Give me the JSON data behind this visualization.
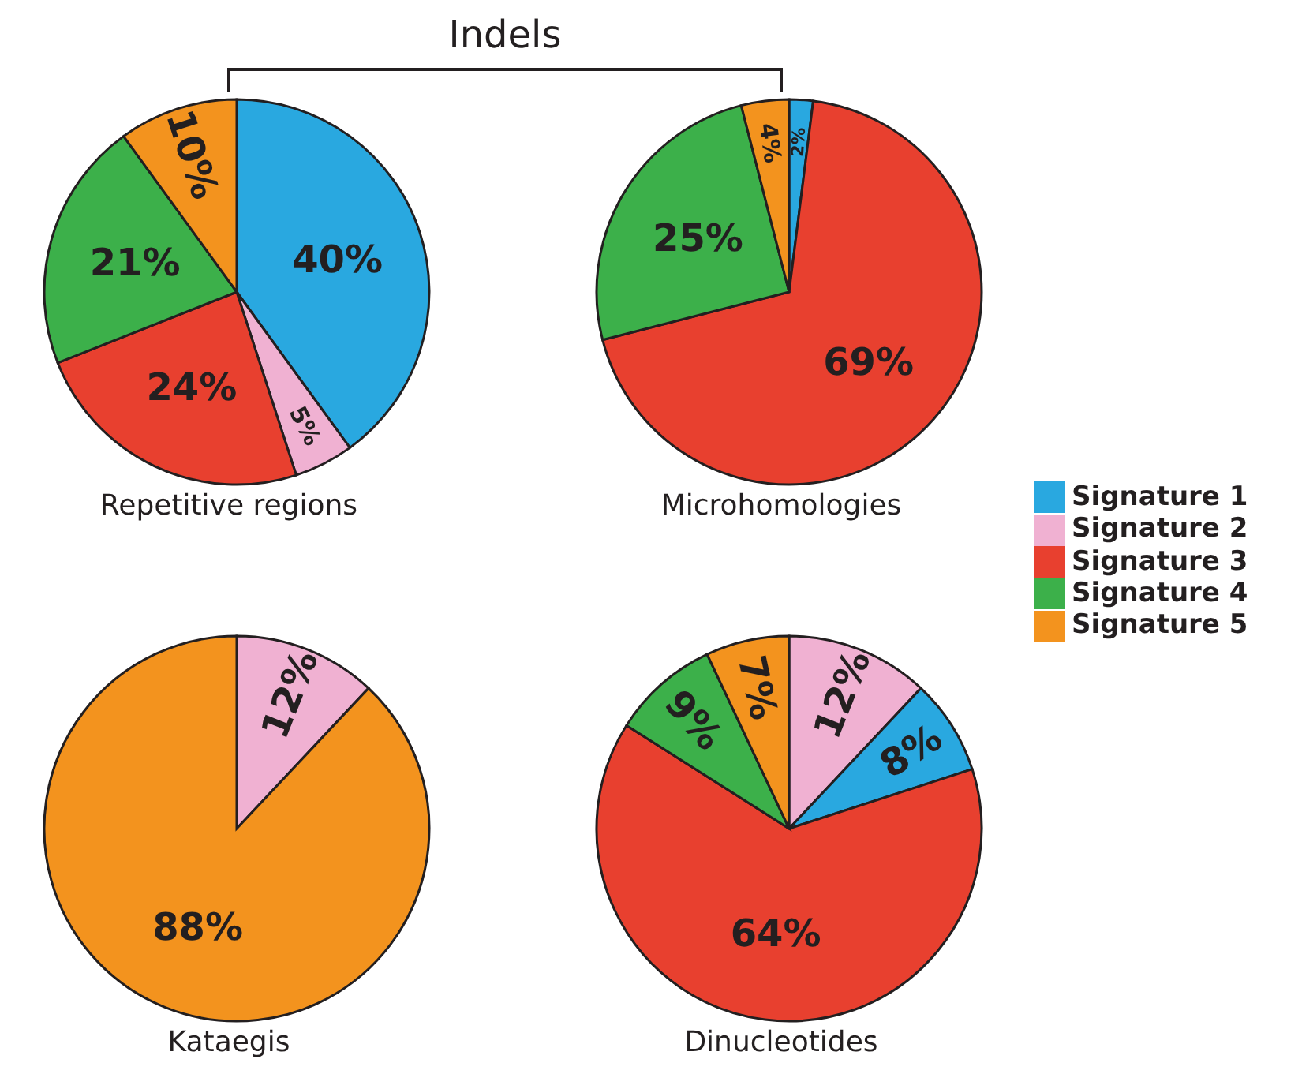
{
  "chart_data": [
    {
      "type": "pie",
      "title": "Repetitive regions",
      "annotations": [
        "Indels"
      ],
      "categories": [
        null,
        null,
        null,
        null,
        null
      ],
      "values": [
        40,
        5,
        24,
        21,
        10
      ],
      "colors": [
        "#29a8e0",
        "#f0b1d2",
        "#e8402f",
        "#3cb04a",
        "#f3931e"
      ],
      "value_labels": [
        "40%",
        "5%",
        "24%",
        "21%",
        "10%"
      ]
    },
    {
      "type": "pie",
      "title": "Microhomologies",
      "categories": [
        "Signature 1",
        "Signature 2",
        "Signature 3",
        "Signature 4",
        "Signature 5"
      ],
      "values": [
        2,
        0,
        69,
        25,
        4
      ],
      "colors": [
        "#29a8e0",
        "#f0b1d2",
        "#e8402f",
        "#3cb04a",
        "#f3931e"
      ],
      "value_labels": [
        "2%",
        null,
        "69%",
        "25%",
        "4%"
      ],
      "legend": "right"
    },
    {
      "type": "pie",
      "title": "Kataegis",
      "categories": [
        null,
        null
      ],
      "values": [
        12,
        88
      ],
      "colors": [
        "#f0b1d2",
        "#f3931e"
      ],
      "value_labels": [
        "12%",
        "88%"
      ]
    },
    {
      "type": "pie",
      "title": "Dinucleotides",
      "categories": [
        null,
        null,
        null,
        null,
        null
      ],
      "values": [
        12,
        8,
        64,
        9,
        7
      ],
      "colors": [
        "#f0b1d2",
        "#29a8e0",
        "#e8402f",
        "#3cb04a",
        "#f3931e"
      ],
      "value_labels": [
        "12%",
        "8%",
        "64%",
        "9%",
        "7%"
      ]
    }
  ]
}
